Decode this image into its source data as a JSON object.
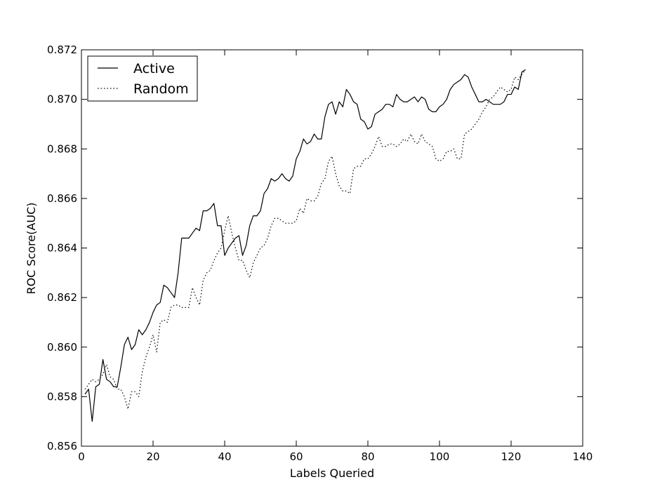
{
  "chart_data": {
    "type": "line",
    "title": "",
    "xlabel": "Labels Queried",
    "ylabel": "ROC Score(AUC)",
    "xlim": [
      0,
      140
    ],
    "ylim": [
      0.856,
      0.872
    ],
    "xticks": [
      0,
      20,
      40,
      60,
      80,
      100,
      120,
      140
    ],
    "yticks": [
      0.856,
      0.858,
      0.86,
      0.862,
      0.864,
      0.866,
      0.868,
      0.87,
      0.872
    ],
    "xtick_labels": [
      "0",
      "20",
      "40",
      "60",
      "80",
      "100",
      "120",
      "140"
    ],
    "ytick_labels": [
      "0.856",
      "0.858",
      "0.860",
      "0.862",
      "0.864",
      "0.866",
      "0.868",
      "0.870",
      "0.872"
    ],
    "grid": false,
    "legend_position": "top-left",
    "series": [
      {
        "name": "Active",
        "style": "solid",
        "color": "#000000",
        "x": [
          1,
          2,
          3,
          4,
          5,
          6,
          7,
          8,
          9,
          10,
          11,
          12,
          13,
          14,
          15,
          16,
          17,
          18,
          19,
          20,
          21,
          22,
          23,
          24,
          25,
          26,
          27,
          28,
          29,
          30,
          31,
          32,
          33,
          34,
          35,
          36,
          37,
          38,
          39,
          40,
          41,
          42,
          43,
          44,
          45,
          46,
          47,
          48,
          49,
          50,
          51,
          52,
          53,
          54,
          55,
          56,
          57,
          58,
          59,
          60,
          61,
          62,
          63,
          64,
          65,
          66,
          67,
          68,
          69,
          70,
          71,
          72,
          73,
          74,
          75,
          76,
          77,
          78,
          79,
          80,
          81,
          82,
          83,
          84,
          85,
          86,
          87,
          88,
          89,
          90,
          91,
          92,
          93,
          94,
          95,
          96,
          97,
          98,
          99,
          100,
          101,
          102,
          103,
          104,
          105,
          106,
          107,
          108,
          109,
          110,
          111,
          112,
          113,
          114,
          115,
          116,
          117,
          118,
          119,
          120,
          121,
          122,
          123,
          124
        ],
        "values": [
          0.8581,
          0.8583,
          0.857,
          0.8584,
          0.8585,
          0.8595,
          0.8587,
          0.8586,
          0.8584,
          0.8584,
          0.8592,
          0.8601,
          0.8604,
          0.8599,
          0.8601,
          0.8607,
          0.8605,
          0.8607,
          0.861,
          0.8614,
          0.8617,
          0.8618,
          0.8625,
          0.8624,
          0.8622,
          0.862,
          0.863,
          0.8644,
          0.8644,
          0.8644,
          0.8646,
          0.8648,
          0.8647,
          0.8655,
          0.8655,
          0.8656,
          0.8658,
          0.8649,
          0.8649,
          0.8637,
          0.864,
          0.8642,
          0.8644,
          0.8645,
          0.8637,
          0.8641,
          0.8649,
          0.8653,
          0.8653,
          0.8655,
          0.8662,
          0.8664,
          0.8668,
          0.8667,
          0.8668,
          0.867,
          0.8668,
          0.8667,
          0.8669,
          0.8676,
          0.8679,
          0.8684,
          0.8682,
          0.8683,
          0.8686,
          0.8684,
          0.8684,
          0.8693,
          0.8698,
          0.8699,
          0.8694,
          0.8699,
          0.8697,
          0.8704,
          0.8702,
          0.8699,
          0.8698,
          0.8692,
          0.8691,
          0.8688,
          0.8689,
          0.8694,
          0.8695,
          0.8696,
          0.8698,
          0.8698,
          0.8697,
          0.8702,
          0.87,
          0.8699,
          0.8699,
          0.87,
          0.8701,
          0.8699,
          0.8701,
          0.87,
          0.8696,
          0.8695,
          0.8695,
          0.8697,
          0.8698,
          0.87,
          0.8704,
          0.8706,
          0.8707,
          0.8708,
          0.871,
          0.8709,
          0.8705,
          0.8702,
          0.8699,
          0.8699,
          0.87,
          0.8699,
          0.8698,
          0.8698,
          0.8698,
          0.8699,
          0.8702,
          0.8702,
          0.8705,
          0.8704,
          0.8711,
          0.8712
        ]
      },
      {
        "name": "Random",
        "style": "dotted",
        "color": "#000000",
        "x": [
          1,
          2,
          3,
          4,
          5,
          6,
          7,
          8,
          9,
          10,
          11,
          12,
          13,
          14,
          15,
          16,
          17,
          18,
          19,
          20,
          21,
          22,
          23,
          24,
          25,
          26,
          27,
          28,
          29,
          30,
          31,
          32,
          33,
          34,
          35,
          36,
          37,
          38,
          39,
          40,
          41,
          42,
          43,
          44,
          45,
          46,
          47,
          48,
          49,
          50,
          51,
          52,
          53,
          54,
          55,
          56,
          57,
          58,
          59,
          60,
          61,
          62,
          63,
          64,
          65,
          66,
          67,
          68,
          69,
          70,
          71,
          72,
          73,
          74,
          75,
          76,
          77,
          78,
          79,
          80,
          81,
          82,
          83,
          84,
          85,
          86,
          87,
          88,
          89,
          90,
          91,
          92,
          93,
          94,
          95,
          96,
          97,
          98,
          99,
          100,
          101,
          102,
          103,
          104,
          105,
          106,
          107,
          108,
          109,
          110,
          111,
          112,
          113,
          114,
          115,
          116,
          117,
          118,
          119,
          120,
          121,
          122,
          123,
          124
        ],
        "values": [
          0.8583,
          0.8585,
          0.8587,
          0.8586,
          0.8587,
          0.8589,
          0.8593,
          0.8588,
          0.8587,
          0.8583,
          0.8583,
          0.858,
          0.8575,
          0.8582,
          0.8582,
          0.858,
          0.859,
          0.8596,
          0.86,
          0.8605,
          0.8598,
          0.861,
          0.8611,
          0.861,
          0.8616,
          0.8617,
          0.8617,
          0.8616,
          0.8616,
          0.8616,
          0.8624,
          0.862,
          0.8617,
          0.8627,
          0.863,
          0.8631,
          0.8635,
          0.8638,
          0.864,
          0.8647,
          0.8653,
          0.8646,
          0.864,
          0.8635,
          0.8635,
          0.8631,
          0.8628,
          0.8634,
          0.8637,
          0.864,
          0.8641,
          0.8644,
          0.8649,
          0.8652,
          0.8652,
          0.8651,
          0.865,
          0.865,
          0.865,
          0.8651,
          0.8656,
          0.8654,
          0.866,
          0.8659,
          0.8659,
          0.8661,
          0.8666,
          0.8668,
          0.8675,
          0.8677,
          0.867,
          0.8665,
          0.8663,
          0.8663,
          0.8662,
          0.8672,
          0.8673,
          0.8673,
          0.8676,
          0.8676,
          0.8678,
          0.8681,
          0.8685,
          0.8681,
          0.8681,
          0.8682,
          0.8682,
          0.8681,
          0.8682,
          0.8684,
          0.8683,
          0.8686,
          0.8683,
          0.8682,
          0.8686,
          0.8683,
          0.8682,
          0.8681,
          0.8676,
          0.8675,
          0.8676,
          0.8679,
          0.8679,
          0.868,
          0.8676,
          0.8676,
          0.8686,
          0.8687,
          0.8688,
          0.869,
          0.8692,
          0.8695,
          0.8697,
          0.87,
          0.8701,
          0.8703,
          0.8705,
          0.8704,
          0.8703,
          0.8704,
          0.8709,
          0.8708,
          0.871,
          0.8712
        ]
      }
    ]
  }
}
